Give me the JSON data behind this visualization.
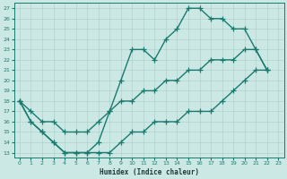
{
  "xlabel": "Humidex (Indice chaleur)",
  "bg_color": "#cce8e4",
  "line_color": "#1a7a6e",
  "xlim": [
    -0.5,
    23.5
  ],
  "ylim": [
    12.5,
    27.5
  ],
  "xticks": [
    0,
    1,
    2,
    3,
    4,
    5,
    6,
    7,
    8,
    9,
    10,
    11,
    12,
    13,
    14,
    15,
    16,
    17,
    18,
    19,
    20,
    21,
    22,
    23
  ],
  "yticks": [
    13,
    14,
    15,
    16,
    17,
    18,
    19,
    20,
    21,
    22,
    23,
    24,
    25,
    26,
    27
  ],
  "line1_x": [
    0,
    1,
    2,
    3,
    4,
    5,
    6,
    7,
    8,
    9,
    10,
    11,
    12,
    13,
    14,
    15,
    16,
    17,
    18,
    19,
    20,
    21,
    22
  ],
  "line1_y": [
    18,
    16,
    15,
    14,
    13,
    13,
    13,
    14,
    17,
    20,
    23,
    23,
    22,
    24,
    25,
    27,
    27,
    26,
    26,
    25,
    25,
    23,
    21
  ],
  "line2_x": [
    0,
    1,
    2,
    3,
    4,
    5,
    6,
    7,
    8,
    9,
    10,
    11,
    12,
    13,
    14,
    15,
    16,
    17,
    18,
    19,
    20,
    21,
    22
  ],
  "line2_y": [
    18,
    17,
    16,
    16,
    15,
    15,
    15,
    16,
    17,
    18,
    18,
    19,
    19,
    20,
    20,
    21,
    21,
    22,
    22,
    22,
    23,
    23,
    21
  ],
  "line3_x": [
    0,
    1,
    2,
    3,
    4,
    5,
    6,
    7,
    8,
    9,
    10,
    11,
    12,
    13,
    14,
    15,
    16,
    17,
    18,
    19,
    20,
    21,
    22
  ],
  "line3_y": [
    18,
    16,
    15,
    14,
    13,
    13,
    13,
    13,
    13,
    14,
    15,
    15,
    16,
    16,
    16,
    17,
    17,
    17,
    18,
    19,
    20,
    21,
    21
  ],
  "lw": 1.0,
  "ms": 4,
  "mew": 0.9
}
